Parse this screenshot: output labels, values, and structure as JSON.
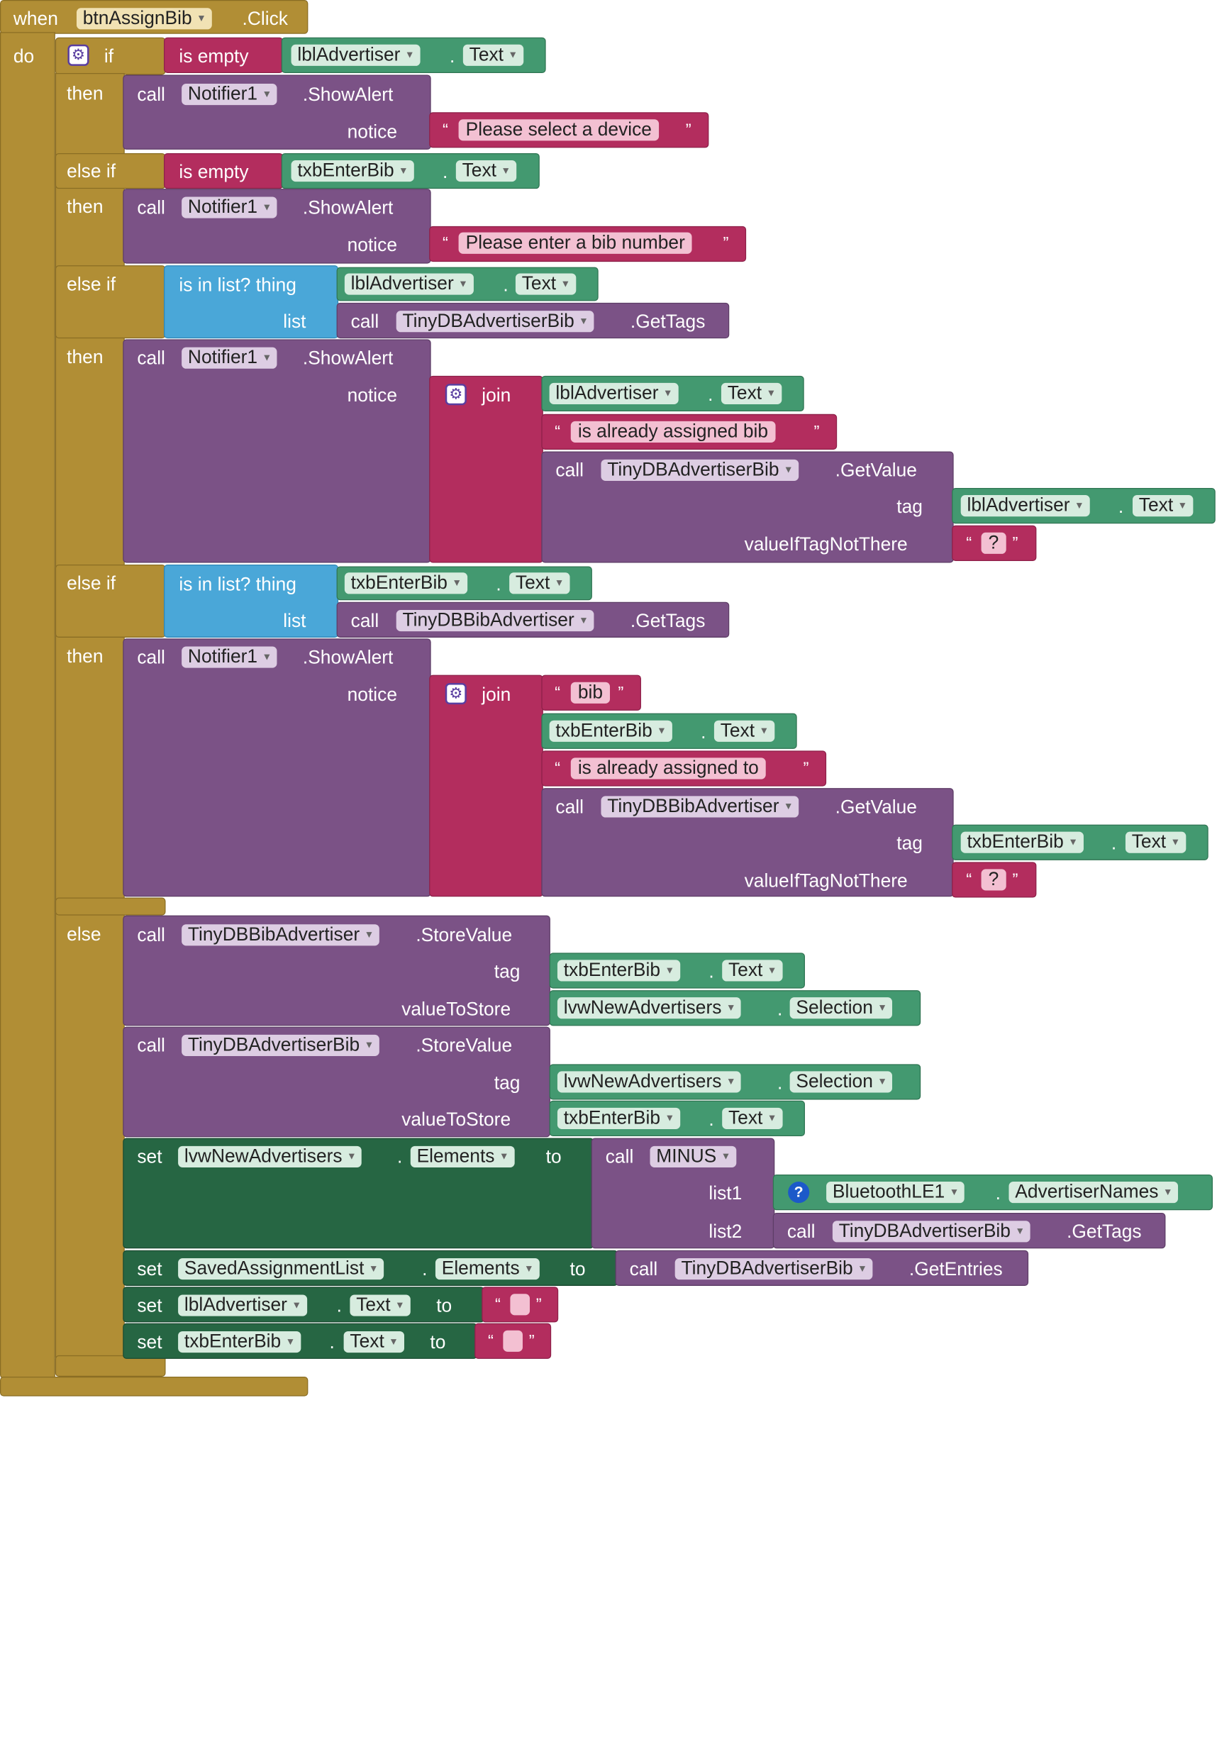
{
  "event": {
    "when": "when",
    "component": "btnAssignBib",
    "suffix": ".Click",
    "do": "do"
  },
  "kw": {
    "if": "if",
    "then": "then",
    "else_if": "else if",
    "else": "else",
    "call": "call",
    "set": "set",
    "to": "to",
    "dot": ".",
    "open_q": "“",
    "close_q": "”"
  },
  "ops": {
    "is_empty": "is empty",
    "is_in_list": "is in list? thing",
    "list": "list",
    "join": "join",
    "notice": "notice",
    "tag": "tag",
    "value_if_tag_not_there": "valueIfTagNotThere",
    "value_to_store": "valueToStore",
    "list1": "list1",
    "list2": "list2"
  },
  "methods": {
    "show_alert": ".ShowAlert",
    "get_tags": ".GetTags",
    "get_value": ".GetValue",
    "store_value": ".StoreValue",
    "get_entries": ".GetEntries"
  },
  "components": {
    "notifier": "Notifier1",
    "lbl_advertiser": "lblAdvertiser",
    "txb_enter_bib": "txbEnterBib",
    "tinydb_adv_bib": "TinyDBAdvertiserBib",
    "tinydb_bib_adv": "TinyDBBibAdvertiser",
    "lvw_new_advertisers": "lvwNewAdvertisers",
    "ble": "BluetoothLE1",
    "saved_list": "SavedAssignmentList",
    "minus": "MINUS"
  },
  "props": {
    "text": "Text",
    "selection": "Selection",
    "elements": "Elements",
    "advertiser_names": "AdvertiserNames"
  },
  "strings": {
    "select_device": "Please select a device",
    "enter_bib": "Please enter a bib number",
    "already_assigned_bib": "is already assigned bib",
    "bib": "bib",
    "already_assigned_to": "is already assigned to",
    "question": "?",
    "empty": ""
  },
  "colors": {
    "event": "#b18e35",
    "procedure": "#7b5286",
    "text": "#b32d5e",
    "getter": "#439970",
    "setter": "#266643",
    "list": "#4aa7d8"
  }
}
